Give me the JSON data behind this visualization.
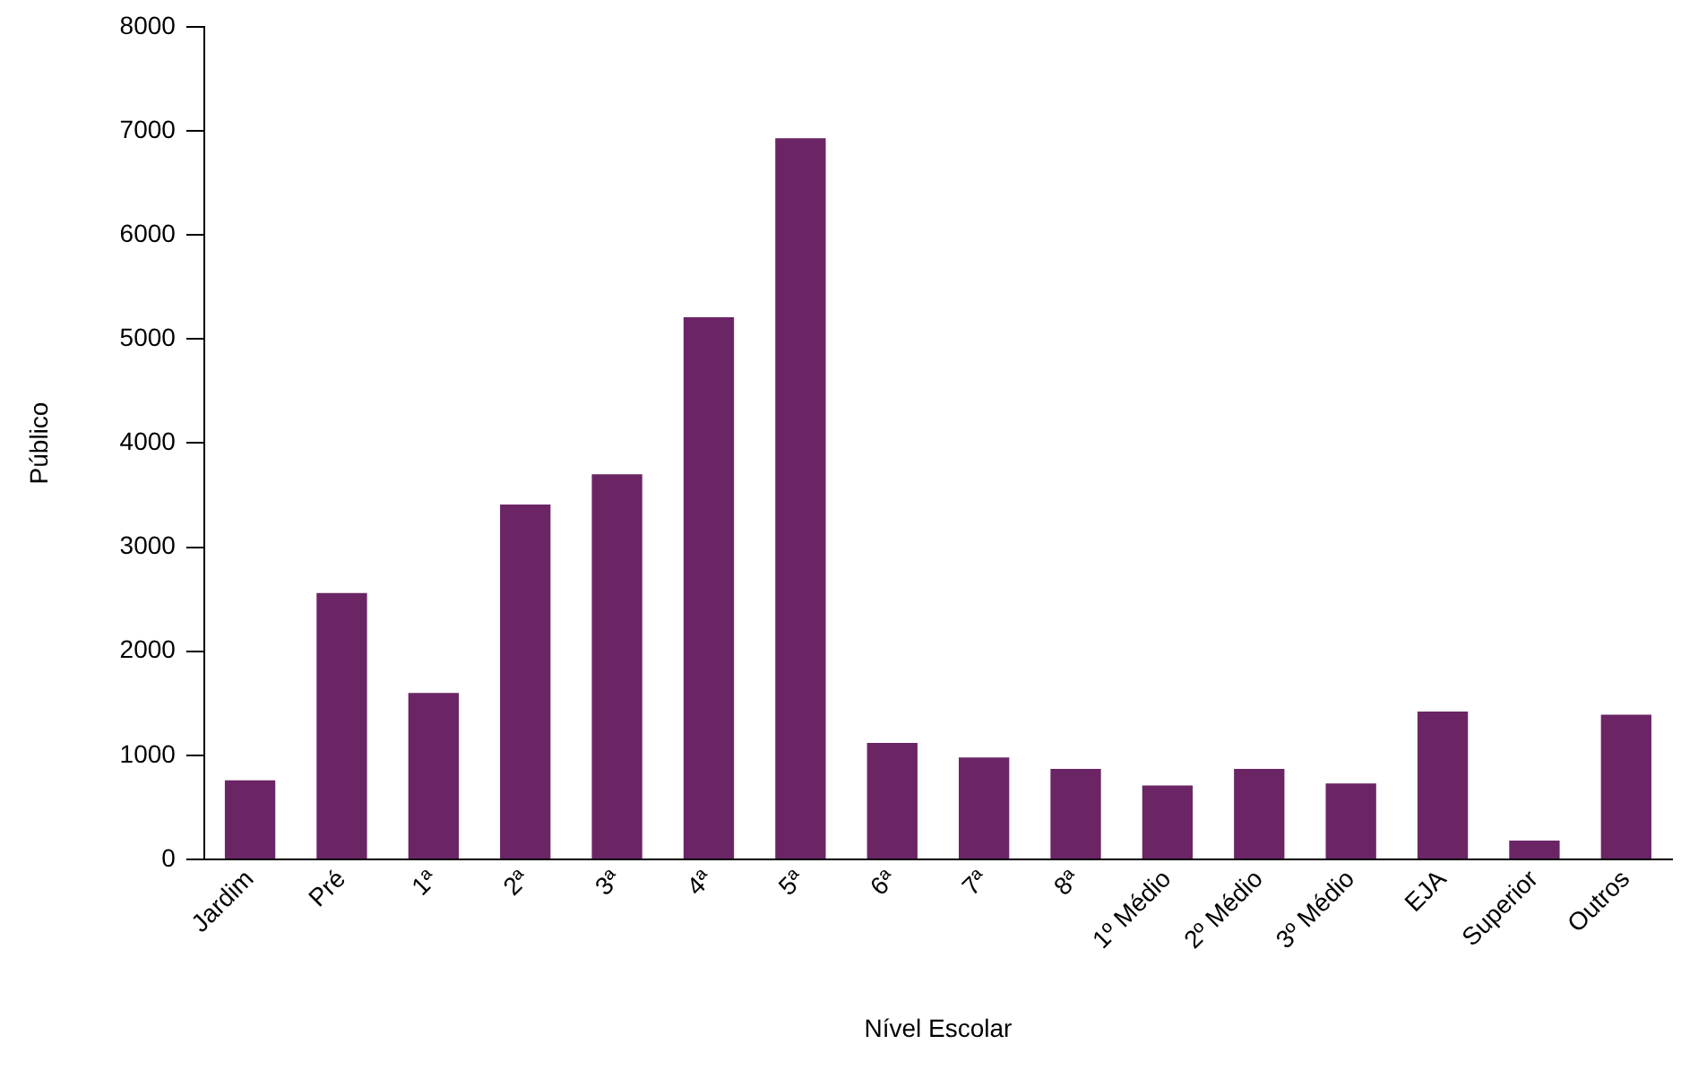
{
  "chart_data": {
    "type": "bar",
    "xlabel": "Nível Escolar",
    "ylabel": "Público",
    "categories": [
      "Jardim",
      "Pré",
      "1ª",
      "2ª",
      "3ª",
      "4ª",
      "5ª",
      "6ª",
      "7ª",
      "8ª",
      "1º Médio",
      "2º Médio",
      "3º Médio",
      "EJA",
      "Superior",
      "Outros"
    ],
    "values": [
      760,
      2560,
      1600,
      3410,
      3700,
      5210,
      6930,
      1120,
      980,
      870,
      710,
      870,
      730,
      1420,
      180,
      1390
    ],
    "color": "#6b2565",
    "ylim": [
      0,
      8000
    ],
    "yticks": [
      0,
      1000,
      2000,
      3000,
      4000,
      5000,
      6000,
      7000,
      8000
    ],
    "grid": false,
    "legend": false
  }
}
